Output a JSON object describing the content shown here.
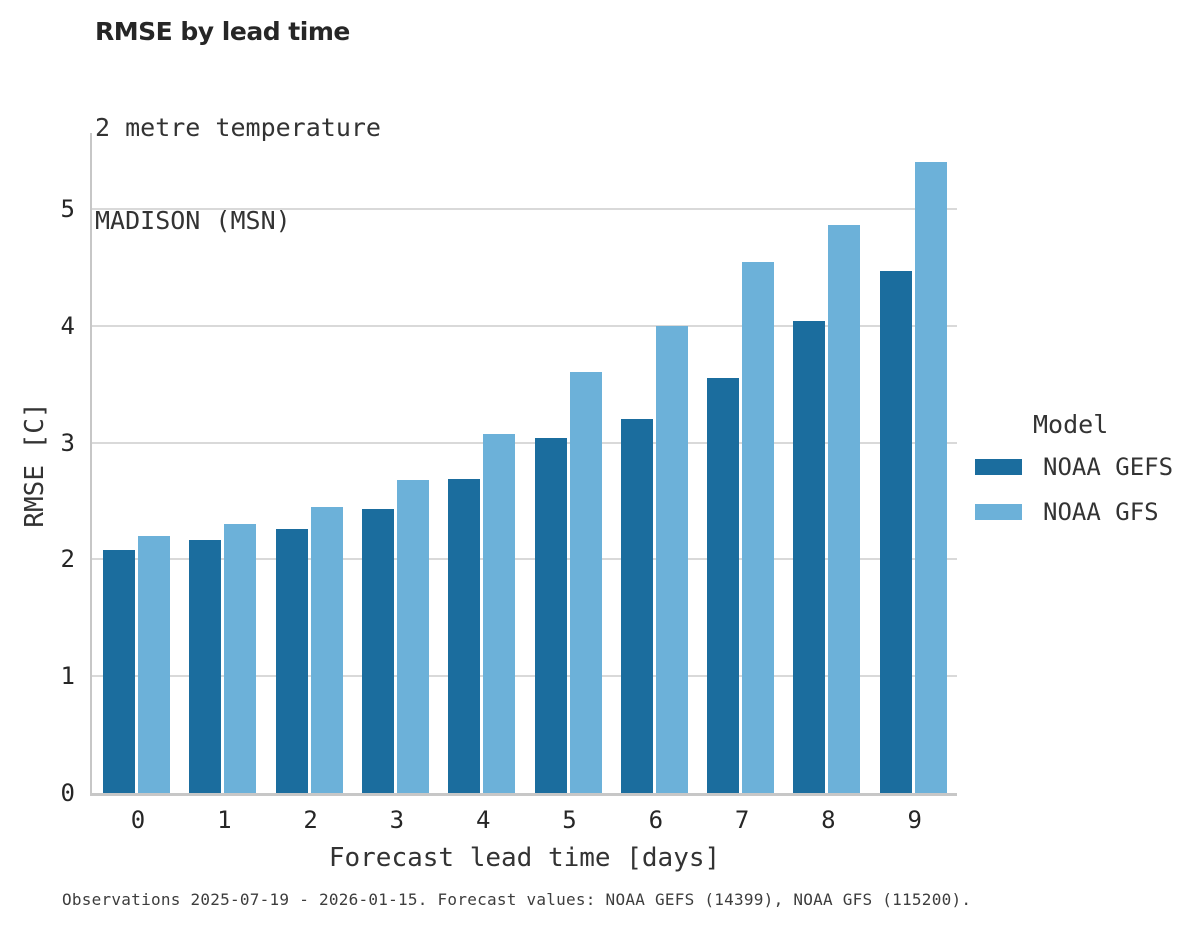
{
  "header": {
    "title": "RMSE by lead time",
    "subtitle_line1": "2 metre temperature",
    "subtitle_line2": "MADISON (MSN)"
  },
  "legend": {
    "title": "Model",
    "entries": [
      {
        "label": "NOAA GEFS",
        "color": "#1b6d9e"
      },
      {
        "label": "NOAA GFS",
        "color": "#6cb1d9"
      }
    ]
  },
  "footer": {
    "note": "Observations 2025-07-19 - 2026-01-15. Forecast values: NOAA GEFS (14399), NOAA GFS (115200)."
  },
  "colors": {
    "gefs_bar": "#1b6d9e",
    "gfs_bar": "#6cb1d9",
    "gridline": "#d9d9d9",
    "axis_spine": "#c7c7c7"
  },
  "chart_data": {
    "type": "bar",
    "title": "RMSE by lead time",
    "subtitle": [
      "2 metre temperature",
      "MADISON (MSN)"
    ],
    "categories": [
      "0",
      "1",
      "2",
      "3",
      "4",
      "5",
      "6",
      "7",
      "8",
      "9"
    ],
    "series": [
      {
        "name": "NOAA GEFS",
        "color": "#1b6d9e",
        "values": [
          2.08,
          2.17,
          2.26,
          2.43,
          2.69,
          3.04,
          3.2,
          3.55,
          4.04,
          4.47
        ]
      },
      {
        "name": "NOAA GFS",
        "color": "#6cb1d9",
        "values": [
          2.2,
          2.3,
          2.45,
          2.68,
          3.07,
          3.6,
          4.0,
          4.55,
          4.86,
          5.4
        ]
      }
    ],
    "xlabel": "Forecast lead time [days]",
    "ylabel": "RMSE [C]",
    "ylim": [
      0,
      5.65
    ],
    "yticks": [
      0,
      1,
      2,
      3,
      4,
      5
    ],
    "grid": true,
    "legend_title": "Model",
    "legend_position": "right",
    "note": "Observations 2025-07-19 - 2026-01-15. Forecast values: NOAA GEFS (14399), NOAA GFS (115200)."
  }
}
